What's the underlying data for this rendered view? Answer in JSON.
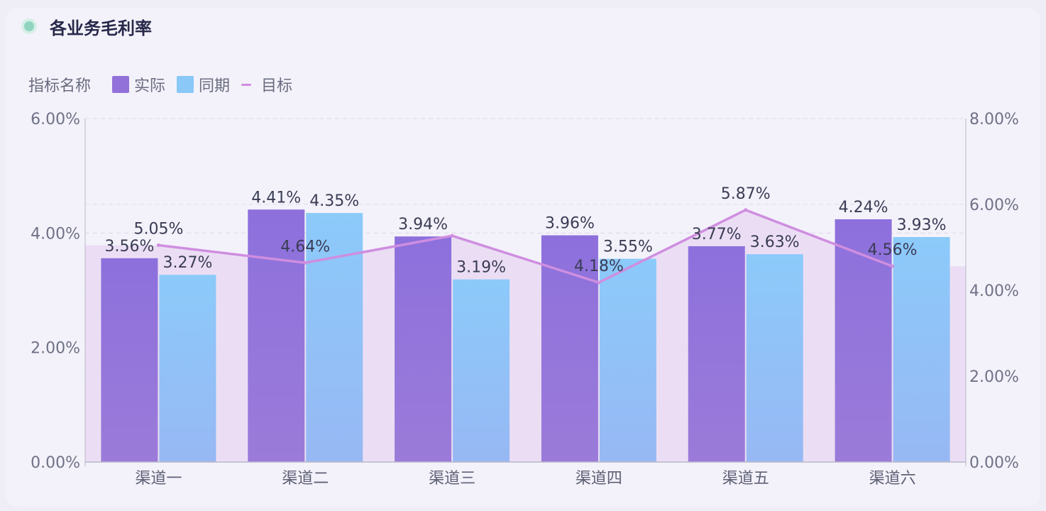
{
  "header": {
    "title": "各业务毛利率"
  },
  "legend": {
    "title": "指标名称",
    "items": [
      {
        "label": "实际",
        "color": "#9272d9"
      },
      {
        "label": "同期",
        "color": "#8ac8f8"
      },
      {
        "label": "目标",
        "color": "#cf8ee0"
      }
    ]
  },
  "chart_data": {
    "type": "bar",
    "categories": [
      "渠道一",
      "渠道二",
      "渠道三",
      "渠道四",
      "渠道五",
      "渠道六"
    ],
    "series": [
      {
        "name": "实际",
        "type": "bar",
        "axis": "left",
        "values": [
          3.56,
          4.41,
          3.94,
          3.96,
          3.77,
          4.24
        ],
        "labels": [
          "3.56%",
          "4.41%",
          "3.94%",
          "3.96%",
          "3.77%",
          "4.24%"
        ]
      },
      {
        "name": "同期",
        "type": "bar",
        "axis": "left",
        "values": [
          3.27,
          4.35,
          3.19,
          3.55,
          3.63,
          3.93
        ],
        "labels": [
          "3.27%",
          "4.35%",
          "3.19%",
          "3.55%",
          "3.63%",
          "3.93%"
        ]
      },
      {
        "name": "目标",
        "type": "line",
        "axis": "right",
        "values": [
          5.05,
          4.64,
          5.27,
          4.18,
          5.87,
          4.56
        ],
        "labels": [
          "5.05%",
          "4.64%",
          "",
          "4.18%",
          "5.87%",
          "4.56%"
        ]
      }
    ],
    "y_left": {
      "ticks": [
        "0.00%",
        "2.00%",
        "4.00%",
        "6.00%"
      ],
      "range": [
        0,
        6
      ]
    },
    "y_right": {
      "ticks": [
        "0.00%",
        "2.00%",
        "4.00%",
        "6.00%",
        "8.00%"
      ],
      "range": [
        0,
        8
      ]
    },
    "grid": true,
    "legend_position": "top-left",
    "colors": {
      "actual_top": "#8d70dc",
      "actual_bottom": "#9b7bd9",
      "prior_top": "#8ccafa",
      "prior_bottom": "#97b8f4",
      "target_line": "#cf8ee0",
      "target_area": "#eadcf3"
    }
  }
}
